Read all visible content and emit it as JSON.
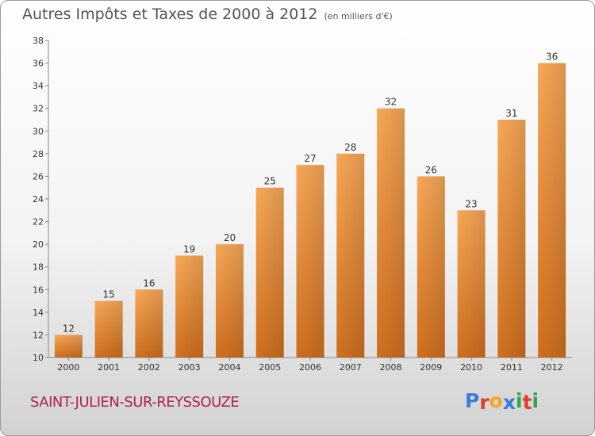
{
  "title": "Autres Impôts et Taxes de 2000 à 2012",
  "unit": "(en milliers d'€)",
  "town": "SAINT-JULIEN-SUR-REYSSOUZE",
  "logo": {
    "letters": [
      "P",
      "r",
      "o",
      "x",
      "i",
      "t",
      "i"
    ],
    "colors": [
      "#3b7dd8",
      "#e53b2c",
      "#f5a623",
      "#3b7dd8",
      "#2aa84a",
      "#e53b2c",
      "#2aa84a"
    ]
  },
  "colors": {
    "bar_top": "#f7a857",
    "bar_bottom": "#d06f1e",
    "title": "#555555",
    "town": "#b0234a"
  },
  "chart_data": {
    "type": "bar",
    "categories": [
      "2000",
      "2001",
      "2002",
      "2003",
      "2004",
      "2005",
      "2006",
      "2007",
      "2008",
      "2009",
      "2010",
      "2011",
      "2012"
    ],
    "values": [
      12,
      15,
      16,
      19,
      20,
      25,
      27,
      28,
      32,
      26,
      23,
      31,
      36
    ],
    "ylim": [
      10,
      38
    ],
    "yticks": [
      10,
      12,
      14,
      16,
      18,
      20,
      22,
      24,
      26,
      28,
      30,
      32,
      34,
      36,
      38
    ],
    "grid": false
  }
}
